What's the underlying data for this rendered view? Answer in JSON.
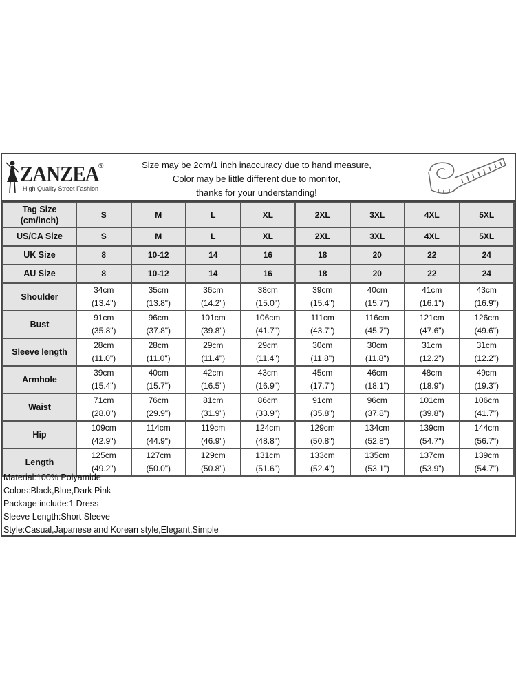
{
  "brand": {
    "name": "ZANZEA",
    "registered": "®",
    "tagline": "High Quality Street Fashion"
  },
  "notice": [
    "Size may be 2cm/1 inch inaccuracy due to hand measure,",
    "Color may be little different due to monitor,",
    "thanks for your understanding!"
  ],
  "icons": {
    "logo": "woman-silhouette-icon",
    "tape": "measuring-tape-icon"
  },
  "size_rows": [
    {
      "label": "Tag Size\n(cm/inch)",
      "values": [
        "S",
        "M",
        "L",
        "XL",
        "2XL",
        "3XL",
        "4XL",
        "5XL"
      ]
    },
    {
      "label": "US/CA Size",
      "values": [
        "S",
        "M",
        "L",
        "XL",
        "2XL",
        "3XL",
        "4XL",
        "5XL"
      ]
    },
    {
      "label": "UK Size",
      "values": [
        "8",
        "10-12",
        "14",
        "16",
        "18",
        "20",
        "22",
        "24"
      ]
    },
    {
      "label": "AU Size",
      "values": [
        "8",
        "10-12",
        "14",
        "16",
        "18",
        "20",
        "22",
        "24"
      ]
    }
  ],
  "measure_rows": [
    {
      "label": "Shoulder",
      "cm": [
        "34cm",
        "35cm",
        "36cm",
        "38cm",
        "39cm",
        "40cm",
        "41cm",
        "43cm"
      ],
      "inch": [
        "(13.4\")",
        "(13.8\")",
        "(14.2\")",
        "(15.0\")",
        "(15.4\")",
        "(15.7\")",
        "(16.1\")",
        "(16.9\")"
      ]
    },
    {
      "label": "Bust",
      "cm": [
        "91cm",
        "96cm",
        "101cm",
        "106cm",
        "111cm",
        "116cm",
        "121cm",
        "126cm"
      ],
      "inch": [
        "(35.8\")",
        "(37.8\")",
        "(39.8\")",
        "(41.7\")",
        "(43.7\")",
        "(45.7\")",
        "(47.6\")",
        "(49.6\")"
      ]
    },
    {
      "label": "Sleeve length",
      "cm": [
        "28cm",
        "28cm",
        "29cm",
        "29cm",
        "30cm",
        "30cm",
        "31cm",
        "31cm"
      ],
      "inch": [
        "(11.0\")",
        "(11.0\")",
        "(11.4\")",
        "(11.4\")",
        "(11.8\")",
        "(11.8\")",
        "(12.2\")",
        "(12.2\")"
      ]
    },
    {
      "label": "Armhole",
      "cm": [
        "39cm",
        "40cm",
        "42cm",
        "43cm",
        "45cm",
        "46cm",
        "48cm",
        "49cm"
      ],
      "inch": [
        "(15.4\")",
        "(15.7\")",
        "(16.5\")",
        "(16.9\")",
        "(17.7\")",
        "(18.1\")",
        "(18.9\")",
        "(19.3\")"
      ]
    },
    {
      "label": "Waist",
      "cm": [
        "71cm",
        "76cm",
        "81cm",
        "86cm",
        "91cm",
        "96cm",
        "101cm",
        "106cm"
      ],
      "inch": [
        "(28.0\")",
        "(29.9\")",
        "(31.9\")",
        "(33.9\")",
        "(35.8\")",
        "(37.8\")",
        "(39.8\")",
        "(41.7\")"
      ]
    },
    {
      "label": "Hip",
      "cm": [
        "109cm",
        "114cm",
        "119cm",
        "124cm",
        "129cm",
        "134cm",
        "139cm",
        "144cm"
      ],
      "inch": [
        "(42.9\")",
        "(44.9\")",
        "(46.9\")",
        "(48.8\")",
        "(50.8\")",
        "(52.8\")",
        "(54.7\")",
        "(56.7\")"
      ]
    },
    {
      "label": "Length",
      "cm": [
        "125cm",
        "127cm",
        "129cm",
        "131cm",
        "133cm",
        "135cm",
        "137cm",
        "139cm"
      ],
      "inch": [
        "(49.2\")",
        "(50.0\")",
        "(50.8\")",
        "(51.6\")",
        "(52.4\")",
        "(53.1\")",
        "(53.9\")",
        "(54.7\")"
      ]
    }
  ],
  "info": [
    "Material:100% Polyamide",
    "Colors:Black,Blue,Dark Pink",
    "Package include:1 Dress",
    "Sleeve Length:Short Sleeve",
    "Style:Casual,Japanese and Korean style,Elegant,Simple"
  ]
}
